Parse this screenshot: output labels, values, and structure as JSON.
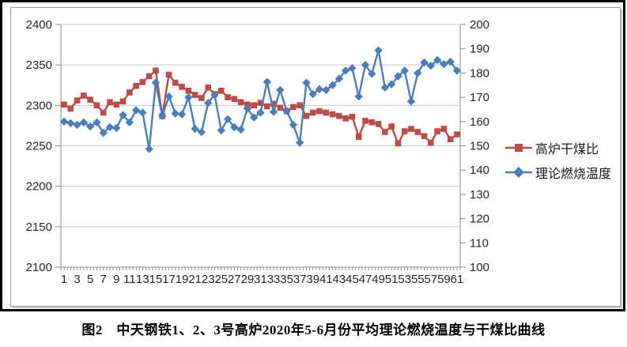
{
  "figure": {
    "caption": "图2　中天钢铁1、2、3号高炉2020年5-6月份平均理论燃烧温度与干煤比曲线"
  },
  "legend": {
    "items": [
      {
        "label": "高炉干煤比",
        "color": "#be4b48",
        "marker": "square"
      },
      {
        "label": "理论燃烧温度",
        "color": "#4a7ebb",
        "marker": "diamond"
      }
    ]
  },
  "colors": {
    "coal_ratio_red": "#be4b48",
    "temperature_blue": "#4a7ebb",
    "gridline": "#c8c8c8",
    "axis": "#8c8c8c",
    "tick_text": "#262626"
  },
  "chart_data": {
    "type": "line",
    "title": "",
    "xlabel": "",
    "ylabel_left": "",
    "ylabel_right": "",
    "grid": "horizontal",
    "legend_position": "right",
    "x": [
      1,
      2,
      3,
      4,
      5,
      6,
      7,
      8,
      9,
      10,
      11,
      12,
      13,
      14,
      15,
      16,
      17,
      18,
      19,
      20,
      21,
      22,
      23,
      24,
      25,
      26,
      27,
      28,
      29,
      30,
      31,
      32,
      33,
      34,
      35,
      36,
      37,
      38,
      39,
      40,
      41,
      42,
      43,
      44,
      45,
      46,
      47,
      48,
      49,
      50,
      51,
      52,
      53,
      54,
      55,
      56,
      57,
      58,
      59,
      60,
      61
    ],
    "x_tick_labels": [
      1,
      3,
      5,
      7,
      9,
      11,
      13,
      15,
      17,
      19,
      21,
      23,
      25,
      27,
      29,
      31,
      33,
      35,
      37,
      39,
      41,
      43,
      45,
      47,
      49,
      51,
      53,
      55,
      57,
      59,
      61
    ],
    "left_axis": {
      "min": 2100,
      "max": 2400,
      "step": 50,
      "ticks": [
        2400,
        2350,
        2300,
        2250,
        2200,
        2150,
        2100
      ]
    },
    "right_axis": {
      "min": 100,
      "max": 200,
      "step": 10,
      "ticks": [
        200,
        190,
        180,
        170,
        160,
        150,
        140,
        130,
        120,
        110,
        100
      ]
    },
    "series": [
      {
        "name": "高炉干煤比",
        "axis": "right",
        "color": "#be4b48",
        "marker": "square",
        "values": [
          167,
          165.3,
          168.7,
          170.7,
          169,
          166.7,
          163.7,
          168,
          167,
          168.3,
          172,
          174.7,
          176.3,
          178.7,
          181,
          162.3,
          179.3,
          176,
          174.3,
          172.7,
          171,
          169.7,
          174,
          171.3,
          172.7,
          170,
          169.3,
          168,
          167,
          166.7,
          167.7,
          166.3,
          167.3,
          165.7,
          164.3,
          166,
          166.7,
          162.3,
          163.7,
          164.3,
          163.7,
          163,
          162.3,
          161.3,
          162,
          153.7,
          160.3,
          159.7,
          159,
          155.7,
          158,
          151,
          156,
          157,
          155.7,
          154,
          151.3,
          156,
          157,
          152.7,
          154.7
        ]
      },
      {
        "name": "理论燃烧温度",
        "axis": "left",
        "color": "#4a7ebb",
        "marker": "diamond",
        "values": [
          2280,
          2278,
          2276,
          2279,
          2274,
          2279,
          2266,
          2273,
          2272,
          2288,
          2279,
          2294,
          2291,
          2246,
          2328,
          2287,
          2311,
          2290,
          2289,
          2310,
          2271,
          2267,
          2303,
          2313,
          2269,
          2283,
          2273,
          2270,
          2296,
          2285,
          2291,
          2329,
          2292,
          2319,
          2293,
          2276,
          2254,
          2328,
          2314,
          2320,
          2319,
          2325,
          2333,
          2343,
          2346,
          2311,
          2350,
          2339,
          2368,
          2322,
          2326,
          2336,
          2343,
          2305,
          2340,
          2353,
          2349,
          2356,
          2351,
          2354,
          2343
        ]
      }
    ]
  }
}
